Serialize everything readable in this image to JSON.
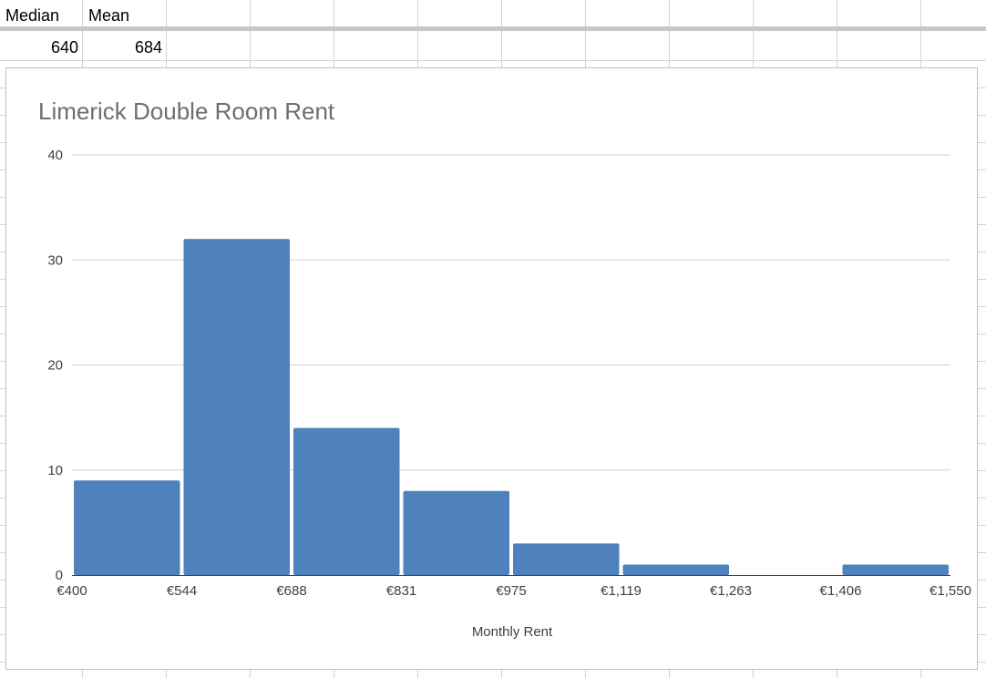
{
  "sheet": {
    "headers": [
      "Median",
      "Mean"
    ],
    "values": [
      "640",
      "684"
    ]
  },
  "chart_data": {
    "type": "bar",
    "title": "Limerick Double Room Rent",
    "xlabel": "Monthly Rent",
    "ylabel": "",
    "x_ticks": [
      "€400",
      "€544",
      "€688",
      "€831",
      "€975",
      "€1,119",
      "€1,263",
      "€1,406",
      "€1,550"
    ],
    "y_ticks": [
      "0",
      "10",
      "20",
      "30",
      "40"
    ],
    "bins": [
      {
        "from": "€400",
        "to": "€544",
        "value": 9
      },
      {
        "from": "€544",
        "to": "€688",
        "value": 32
      },
      {
        "from": "€688",
        "to": "€831",
        "value": 14
      },
      {
        "from": "€831",
        "to": "€975",
        "value": 8
      },
      {
        "from": "€975",
        "to": "€1,119",
        "value": 3
      },
      {
        "from": "€1,119",
        "to": "€1,263",
        "value": 1
      },
      {
        "from": "€1,263",
        "to": "€1,406",
        "value": 0
      },
      {
        "from": "€1,406",
        "to": "€1,550",
        "value": 1
      }
    ],
    "ylim": [
      0,
      40
    ],
    "grid": true,
    "bar_color": "#4f81bd",
    "gridline_color": "#d0d0d0"
  }
}
